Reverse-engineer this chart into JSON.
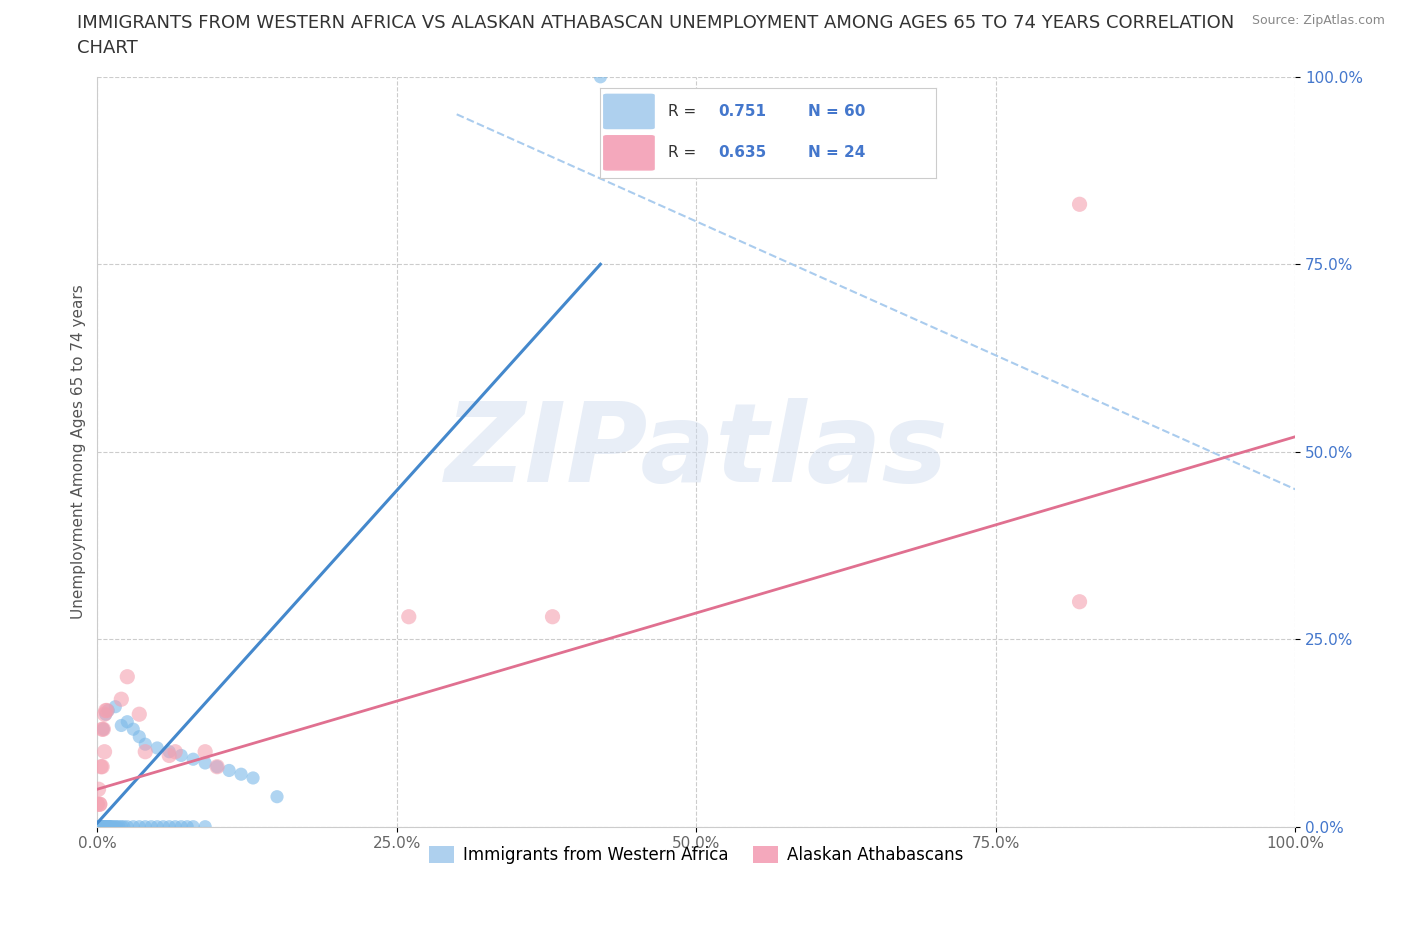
{
  "title_line1": "IMMIGRANTS FROM WESTERN AFRICA VS ALASKAN ATHABASCAN UNEMPLOYMENT AMONG AGES 65 TO 74 YEARS CORRELATION",
  "title_line2": "CHART",
  "source_text": "Source: ZipAtlas.com",
  "ylabel": "Unemployment Among Ages 65 to 74 years",
  "watermark": "ZIPatlas",
  "blue_R": 0.751,
  "blue_N": 60,
  "pink_R": 0.635,
  "pink_N": 24,
  "legend_label_blue": "Immigrants from Western Africa",
  "legend_label_pink": "Alaskan Athabascans",
  "blue_color": "#7ab8e8",
  "pink_color": "#f4a0b0",
  "blue_line_color": "#4488cc",
  "pink_line_color": "#e07090",
  "dash_color": "#aaccee",
  "blue_scatter": [
    [
      0.0,
      0.0
    ],
    [
      0.001,
      0.0
    ],
    [
      0.001,
      0.0
    ],
    [
      0.002,
      0.0
    ],
    [
      0.002,
      0.0
    ],
    [
      0.003,
      0.0
    ],
    [
      0.003,
      0.0
    ],
    [
      0.004,
      0.0
    ],
    [
      0.004,
      0.0
    ],
    [
      0.005,
      0.0
    ],
    [
      0.005,
      0.0
    ],
    [
      0.006,
      0.0
    ],
    [
      0.006,
      0.0
    ],
    [
      0.007,
      0.0
    ],
    [
      0.007,
      0.0
    ],
    [
      0.008,
      0.0
    ],
    [
      0.009,
      0.0
    ],
    [
      0.01,
      0.0
    ],
    [
      0.01,
      0.0
    ],
    [
      0.011,
      0.0
    ],
    [
      0.012,
      0.0
    ],
    [
      0.013,
      0.0
    ],
    [
      0.015,
      0.0
    ],
    [
      0.016,
      0.0
    ],
    [
      0.018,
      0.0
    ],
    [
      0.02,
      0.0
    ],
    [
      0.022,
      0.0
    ],
    [
      0.025,
      0.0
    ],
    [
      0.03,
      0.0
    ],
    [
      0.035,
      0.0
    ],
    [
      0.04,
      0.0
    ],
    [
      0.045,
      0.0
    ],
    [
      0.05,
      0.0
    ],
    [
      0.055,
      0.0
    ],
    [
      0.06,
      0.0
    ],
    [
      0.065,
      0.0
    ],
    [
      0.07,
      0.0
    ],
    [
      0.075,
      0.0
    ],
    [
      0.08,
      0.0
    ],
    [
      0.09,
      0.0
    ],
    [
      0.005,
      0.13
    ],
    [
      0.007,
      0.15
    ],
    [
      0.009,
      0.155
    ],
    [
      0.015,
      0.16
    ],
    [
      0.02,
      0.135
    ],
    [
      0.025,
      0.14
    ],
    [
      0.03,
      0.13
    ],
    [
      0.035,
      0.12
    ],
    [
      0.04,
      0.11
    ],
    [
      0.05,
      0.105
    ],
    [
      0.06,
      0.1
    ],
    [
      0.07,
      0.095
    ],
    [
      0.08,
      0.09
    ],
    [
      0.09,
      0.085
    ],
    [
      0.1,
      0.08
    ],
    [
      0.11,
      0.075
    ],
    [
      0.12,
      0.07
    ],
    [
      0.13,
      0.065
    ],
    [
      0.15,
      0.04
    ],
    [
      0.42,
      1.0
    ]
  ],
  "pink_scatter": [
    [
      0.0,
      0.03
    ],
    [
      0.001,
      0.05
    ],
    [
      0.002,
      0.03
    ],
    [
      0.002,
      0.03
    ],
    [
      0.003,
      0.08
    ],
    [
      0.004,
      0.08
    ],
    [
      0.004,
      0.13
    ],
    [
      0.005,
      0.13
    ],
    [
      0.006,
      0.1
    ],
    [
      0.006,
      0.15
    ],
    [
      0.007,
      0.155
    ],
    [
      0.008,
      0.155
    ],
    [
      0.02,
      0.17
    ],
    [
      0.025,
      0.2
    ],
    [
      0.035,
      0.15
    ],
    [
      0.04,
      0.1
    ],
    [
      0.06,
      0.095
    ],
    [
      0.065,
      0.1
    ],
    [
      0.09,
      0.1
    ],
    [
      0.1,
      0.08
    ],
    [
      0.26,
      0.28
    ],
    [
      0.38,
      0.28
    ],
    [
      0.82,
      0.3
    ],
    [
      0.82,
      0.83
    ]
  ],
  "xlim": [
    0.0,
    1.0
  ],
  "ylim": [
    0.0,
    1.0
  ],
  "xticks": [
    0.0,
    0.25,
    0.5,
    0.75,
    1.0
  ],
  "xtick_labels": [
    "0.0%",
    "25.0%",
    "50.0%",
    "75.0%",
    "100.0%"
  ],
  "yticks": [
    0.0,
    0.25,
    0.5,
    0.75,
    1.0
  ],
  "ytick_labels": [
    "0.0%",
    "25.0%",
    "50.0%",
    "75.0%",
    "100.0%"
  ],
  "bg_color": "#ffffff",
  "grid_color": "#cccccc",
  "title_fontsize": 13,
  "axis_label_fontsize": 11,
  "tick_fontsize": 11,
  "ytick_color": "#4477cc",
  "xtick_color": "#666666"
}
